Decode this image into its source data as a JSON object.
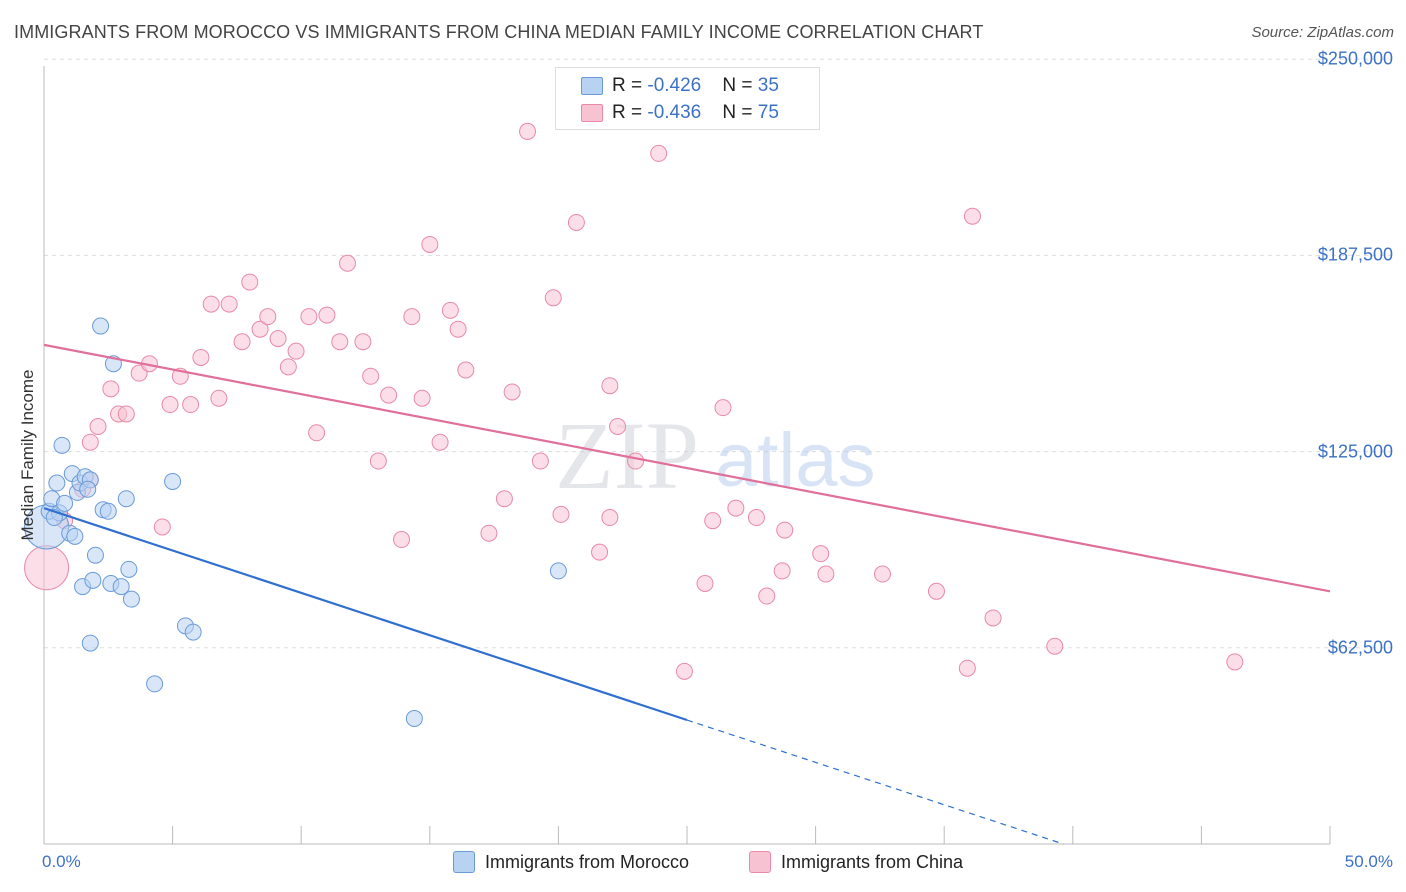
{
  "title": "IMMIGRANTS FROM MOROCCO VS IMMIGRANTS FROM CHINA MEDIAN FAMILY INCOME CORRELATION CHART",
  "source": "Source: ZipAtlas.com",
  "watermark": {
    "zip": "ZIP",
    "atlas": "atlas"
  },
  "legend_top": {
    "r_label": "R = ",
    "n_label": "N = ",
    "rows": [
      {
        "r": "-0.426",
        "n": "35"
      },
      {
        "r": "-0.436",
        "n": "75"
      }
    ]
  },
  "colors": {
    "morocco_fill": "#b8d2f2",
    "morocco_stroke": "#6a9bd8",
    "morocco_line": "#2f6fd0",
    "china_fill": "#f7c3d3",
    "china_stroke": "#e88aa8",
    "china_line": "#e0709a",
    "axis_text": "#3c72c6",
    "grid": "#dddddd"
  },
  "chart_data": {
    "type": "scatter",
    "title": "IMMIGRANTS FROM MOROCCO VS IMMIGRANTS FROM CHINA MEDIAN FAMILY INCOME CORRELATION CHART",
    "xlabel": "",
    "ylabel": "Median Family Income",
    "xlim": [
      0,
      50
    ],
    "ylim": [
      0,
      262500
    ],
    "x_tick_labels": [
      "0.0%",
      "50.0%"
    ],
    "y_ticks": [
      62500,
      125000,
      187500,
      250000
    ],
    "y_tick_labels": [
      "$62,500",
      "$125,000",
      "$187,500",
      "$250,000"
    ],
    "grid": true,
    "legend_position": "top-center and bottom",
    "series": [
      {
        "name": "Immigrants from Morocco",
        "r": -0.426,
        "n": 35,
        "trend": {
          "x0": 0,
          "y0": 107000,
          "x1": 25,
          "y1": 39500,
          "dashed_to_x": 40,
          "dashed_to_y": -1000
        },
        "points": [
          {
            "x": 0.1,
            "y": 101000,
            "size": "large"
          },
          {
            "x": 0.2,
            "y": 106000
          },
          {
            "x": 0.3,
            "y": 110000
          },
          {
            "x": 0.5,
            "y": 115000
          },
          {
            "x": 0.6,
            "y": 105500
          },
          {
            "x": 0.7,
            "y": 127000
          },
          {
            "x": 0.8,
            "y": 108500
          },
          {
            "x": 1.0,
            "y": 99000
          },
          {
            "x": 1.1,
            "y": 118000
          },
          {
            "x": 1.2,
            "y": 98000
          },
          {
            "x": 1.3,
            "y": 112000
          },
          {
            "x": 1.4,
            "y": 115000
          },
          {
            "x": 1.5,
            "y": 82000
          },
          {
            "x": 1.6,
            "y": 117000
          },
          {
            "x": 1.8,
            "y": 116000
          },
          {
            "x": 1.8,
            "y": 64000
          },
          {
            "x": 1.9,
            "y": 84000
          },
          {
            "x": 2.0,
            "y": 92000
          },
          {
            "x": 2.2,
            "y": 165000
          },
          {
            "x": 2.3,
            "y": 106500
          },
          {
            "x": 2.5,
            "y": 106000
          },
          {
            "x": 2.6,
            "y": 83000
          },
          {
            "x": 2.7,
            "y": 153000
          },
          {
            "x": 3.0,
            "y": 82000
          },
          {
            "x": 3.2,
            "y": 110000
          },
          {
            "x": 3.3,
            "y": 87500
          },
          {
            "x": 3.4,
            "y": 78000
          },
          {
            "x": 4.3,
            "y": 51000
          },
          {
            "x": 5.0,
            "y": 115500
          },
          {
            "x": 5.5,
            "y": 69500
          },
          {
            "x": 5.8,
            "y": 67500
          },
          {
            "x": 14.4,
            "y": 40000
          },
          {
            "x": 20.0,
            "y": 87000
          },
          {
            "x": 0.4,
            "y": 104000
          },
          {
            "x": 1.7,
            "y": 113000
          }
        ]
      },
      {
        "name": "Immigrants from China",
        "r": -0.436,
        "n": 75,
        "trend": {
          "x0": 0,
          "y0": 159000,
          "x1": 50,
          "y1": 80500
        },
        "points": [
          {
            "x": 0.1,
            "y": 88000,
            "size": "large"
          },
          {
            "x": 0.8,
            "y": 103000
          },
          {
            "x": 1.5,
            "y": 113000
          },
          {
            "x": 1.8,
            "y": 116000
          },
          {
            "x": 1.8,
            "y": 128000
          },
          {
            "x": 2.1,
            "y": 133000
          },
          {
            "x": 2.6,
            "y": 145000
          },
          {
            "x": 2.9,
            "y": 137000
          },
          {
            "x": 3.2,
            "y": 137000
          },
          {
            "x": 3.7,
            "y": 150000
          },
          {
            "x": 4.1,
            "y": 153000
          },
          {
            "x": 4.6,
            "y": 101000
          },
          {
            "x": 4.9,
            "y": 140000
          },
          {
            "x": 5.3,
            "y": 149000
          },
          {
            "x": 5.7,
            "y": 140000
          },
          {
            "x": 6.1,
            "y": 155000
          },
          {
            "x": 6.5,
            "y": 172000
          },
          {
            "x": 6.8,
            "y": 142000
          },
          {
            "x": 7.2,
            "y": 172000
          },
          {
            "x": 7.7,
            "y": 160000
          },
          {
            "x": 8.0,
            "y": 179000
          },
          {
            "x": 8.4,
            "y": 164000
          },
          {
            "x": 8.7,
            "y": 168000
          },
          {
            "x": 9.1,
            "y": 161000
          },
          {
            "x": 9.5,
            "y": 152000
          },
          {
            "x": 9.8,
            "y": 157000
          },
          {
            "x": 10.3,
            "y": 168000
          },
          {
            "x": 10.6,
            "y": 131000
          },
          {
            "x": 11.0,
            "y": 168500
          },
          {
            "x": 11.5,
            "y": 160000
          },
          {
            "x": 11.8,
            "y": 185000
          },
          {
            "x": 12.4,
            "y": 160000
          },
          {
            "x": 12.7,
            "y": 149000
          },
          {
            "x": 13.0,
            "y": 122000
          },
          {
            "x": 13.4,
            "y": 143000
          },
          {
            "x": 13.9,
            "y": 97000
          },
          {
            "x": 14.3,
            "y": 168000
          },
          {
            "x": 14.7,
            "y": 142000
          },
          {
            "x": 15.0,
            "y": 191000
          },
          {
            "x": 15.4,
            "y": 128000
          },
          {
            "x": 15.8,
            "y": 170000
          },
          {
            "x": 16.1,
            "y": 164000
          },
          {
            "x": 16.4,
            "y": 151000
          },
          {
            "x": 17.3,
            "y": 99000
          },
          {
            "x": 17.9,
            "y": 110000
          },
          {
            "x": 18.2,
            "y": 144000
          },
          {
            "x": 18.8,
            "y": 227000
          },
          {
            "x": 19.3,
            "y": 122000
          },
          {
            "x": 19.8,
            "y": 174000
          },
          {
            "x": 20.1,
            "y": 105000
          },
          {
            "x": 20.7,
            "y": 198000
          },
          {
            "x": 21.6,
            "y": 93000
          },
          {
            "x": 22.0,
            "y": 146000
          },
          {
            "x": 22.0,
            "y": 104000
          },
          {
            "x": 22.3,
            "y": 133000
          },
          {
            "x": 23.0,
            "y": 122000
          },
          {
            "x": 23.9,
            "y": 220000
          },
          {
            "x": 24.9,
            "y": 55000
          },
          {
            "x": 25.7,
            "y": 83000
          },
          {
            "x": 26.0,
            "y": 103000
          },
          {
            "x": 26.4,
            "y": 139000
          },
          {
            "x": 26.9,
            "y": 107000
          },
          {
            "x": 27.7,
            "y": 104000
          },
          {
            "x": 28.1,
            "y": 79000
          },
          {
            "x": 28.7,
            "y": 87000
          },
          {
            "x": 28.8,
            "y": 100000
          },
          {
            "x": 30.2,
            "y": 92500
          },
          {
            "x": 30.4,
            "y": 86000
          },
          {
            "x": 32.6,
            "y": 86000
          },
          {
            "x": 34.7,
            "y": 80500
          },
          {
            "x": 35.9,
            "y": 56000
          },
          {
            "x": 36.1,
            "y": 200000
          },
          {
            "x": 36.9,
            "y": 72000
          },
          {
            "x": 39.3,
            "y": 63000
          },
          {
            "x": 46.3,
            "y": 58000
          }
        ]
      }
    ]
  }
}
